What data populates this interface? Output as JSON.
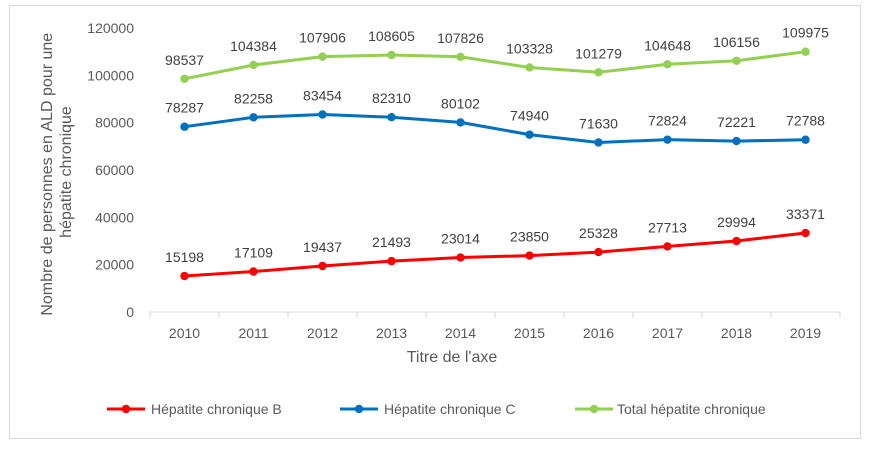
{
  "chart_data": {
    "type": "line",
    "title": "",
    "xlabel": "Titre de l'axe",
    "ylabel": "Nombre de personnes en ALD pour une hépatite chronique",
    "ylabel_lines": [
      "Nombre de personnes en ALD pour une",
      "hépatite  chronique"
    ],
    "ylim": [
      0,
      120000
    ],
    "yticks": [
      0,
      20000,
      40000,
      60000,
      80000,
      100000,
      120000
    ],
    "ytick_labels": [
      "0",
      "20000",
      "40000",
      "60000",
      "80000",
      "100000",
      "120000"
    ],
    "grid": false,
    "legend_position": "bottom",
    "categories": [
      "2010",
      "2011",
      "2012",
      "2013",
      "2014",
      "2015",
      "2016",
      "2017",
      "2018",
      "2019"
    ],
    "series": [
      {
        "name": "Hépatite chronique B",
        "color": "#ff0000",
        "values": [
          15198,
          17109,
          19437,
          21493,
          23014,
          23850,
          25328,
          27713,
          29994,
          33371
        ],
        "labels": [
          "15198",
          "17109",
          "19437",
          "21493",
          "23014",
          "23850",
          "25328",
          "27713",
          "29994",
          "33371"
        ]
      },
      {
        "name": "Hépatite chronique C",
        "color": "#0070c0",
        "values": [
          78287,
          82258,
          83454,
          82310,
          80102,
          74940,
          71630,
          72824,
          72221,
          72788
        ],
        "labels": [
          "78287",
          "82258",
          "83454",
          "82310",
          "80102",
          "74940",
          "71630",
          "72824",
          "72221",
          "72788"
        ]
      },
      {
        "name": "Total hépatite chronique",
        "color": "#92d050",
        "values": [
          98537,
          104384,
          107906,
          108605,
          107826,
          103328,
          101279,
          104648,
          106156,
          109975
        ],
        "labels": [
          "98537",
          "104384",
          "107906",
          "108605",
          "107826",
          "103328",
          "101279",
          "104648",
          "106156",
          "109975"
        ]
      }
    ]
  }
}
